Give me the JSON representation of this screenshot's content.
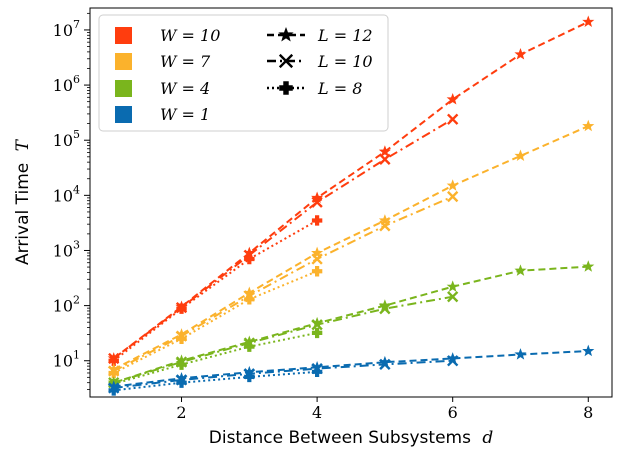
{
  "chart_data": {
    "type": "line",
    "title": "",
    "xlabel": "Distance Between Subsystems",
    "xlabel_var": "d",
    "ylabel": "Arrival Time",
    "ylabel_var": "T",
    "x_ticks": [
      2,
      4,
      6,
      8
    ],
    "x_tick_labels": [
      "2",
      "4",
      "6",
      "8"
    ],
    "xlim": [
      0.65,
      8.35
    ],
    "y_scale": "log",
    "ylim": [
      2.2,
      25000000
    ],
    "y_ticks": [
      10,
      100,
      1000,
      10000,
      100000,
      1000000,
      10000000
    ],
    "y_tick_labels": [
      {
        "base": "10",
        "exp": "1"
      },
      {
        "base": "10",
        "exp": "2"
      },
      {
        "base": "10",
        "exp": "3"
      },
      {
        "base": "10",
        "exp": "4"
      },
      {
        "base": "10",
        "exp": "5"
      },
      {
        "base": "10",
        "exp": "6"
      },
      {
        "base": "10",
        "exp": "7"
      }
    ],
    "grid": false,
    "legend_position": "top-left",
    "legend_color_entries": [
      {
        "label": "W = 10",
        "color": "#ff3d0e"
      },
      {
        "label": "W = 7",
        "color": "#fbb22c"
      },
      {
        "label": "W = 4",
        "color": "#7ab51d"
      },
      {
        "label": "W = 1",
        "color": "#0a6bb0"
      }
    ],
    "legend_style_entries": [
      {
        "label": "L = 12",
        "style": "dashed",
        "marker": "star"
      },
      {
        "label": "L = 10",
        "style": "dashdot",
        "marker": "x"
      },
      {
        "label": "L = 8",
        "style": "dotted",
        "marker": "plus"
      }
    ],
    "series": [
      {
        "W": 10,
        "L": 12,
        "color": "#ff3d0e",
        "style": "dashed",
        "marker": "star",
        "x": [
          1,
          2,
          3,
          4,
          5,
          6,
          7,
          8
        ],
        "y": [
          11,
          95,
          900,
          9000,
          62000,
          550000,
          3600000,
          14000000
        ]
      },
      {
        "W": 10,
        "L": 10,
        "color": "#ff3d0e",
        "style": "dashdot",
        "marker": "x",
        "x": [
          1,
          2,
          3,
          4,
          5,
          6
        ],
        "y": [
          11,
          92,
          820,
          7500,
          45000,
          240000
        ]
      },
      {
        "W": 10,
        "L": 8,
        "color": "#ff3d0e",
        "style": "dotted",
        "marker": "plus",
        "x": [
          1,
          2,
          3,
          4
        ],
        "y": [
          10,
          88,
          700,
          3500
        ]
      },
      {
        "W": 7,
        "L": 12,
        "color": "#fbb22c",
        "style": "dashed",
        "marker": "star",
        "x": [
          1,
          2,
          3,
          4,
          5,
          6,
          7,
          8
        ],
        "y": [
          7,
          30,
          170,
          900,
          3500,
          15000,
          52000,
          180000
        ]
      },
      {
        "W": 7,
        "L": 10,
        "color": "#fbb22c",
        "style": "dashdot",
        "marker": "x",
        "x": [
          1,
          2,
          3,
          4,
          5,
          6
        ],
        "y": [
          6.5,
          28,
          150,
          700,
          2800,
          9500
        ]
      },
      {
        "W": 7,
        "L": 8,
        "color": "#fbb22c",
        "style": "dotted",
        "marker": "plus",
        "x": [
          1,
          2,
          3,
          4
        ],
        "y": [
          6,
          25,
          130,
          420
        ]
      },
      {
        "W": 4,
        "L": 12,
        "color": "#7ab51d",
        "style": "dashed",
        "marker": "star",
        "x": [
          1,
          2,
          3,
          4,
          5,
          6,
          7,
          8
        ],
        "y": [
          4,
          10,
          22,
          48,
          100,
          220,
          430,
          510
        ]
      },
      {
        "W": 4,
        "L": 10,
        "color": "#7ab51d",
        "style": "dashdot",
        "marker": "x",
        "x": [
          1,
          2,
          3,
          4,
          5,
          6
        ],
        "y": [
          4,
          9.5,
          21,
          45,
          88,
          145
        ]
      },
      {
        "W": 4,
        "L": 8,
        "color": "#7ab51d",
        "style": "dotted",
        "marker": "plus",
        "x": [
          1,
          2,
          3,
          4
        ],
        "y": [
          3.8,
          8.5,
          18,
          32
        ]
      },
      {
        "W": 1,
        "L": 12,
        "color": "#0a6bb0",
        "style": "dashed",
        "marker": "star",
        "x": [
          1,
          2,
          3,
          4,
          5,
          6,
          7,
          8
        ],
        "y": [
          3.4,
          4.8,
          6.2,
          7.6,
          9.4,
          11,
          13,
          15
        ]
      },
      {
        "W": 1,
        "L": 10,
        "color": "#0a6bb0",
        "style": "dashdot",
        "marker": "x",
        "x": [
          1,
          2,
          3,
          4,
          5,
          6
        ],
        "y": [
          3.2,
          4.5,
          5.8,
          7.2,
          8.6,
          10
        ]
      },
      {
        "W": 1,
        "L": 8,
        "color": "#0a6bb0",
        "style": "dotted",
        "marker": "plus",
        "x": [
          1,
          2,
          3,
          4
        ],
        "y": [
          2.9,
          4.0,
          5.1,
          6.3
        ]
      }
    ]
  }
}
